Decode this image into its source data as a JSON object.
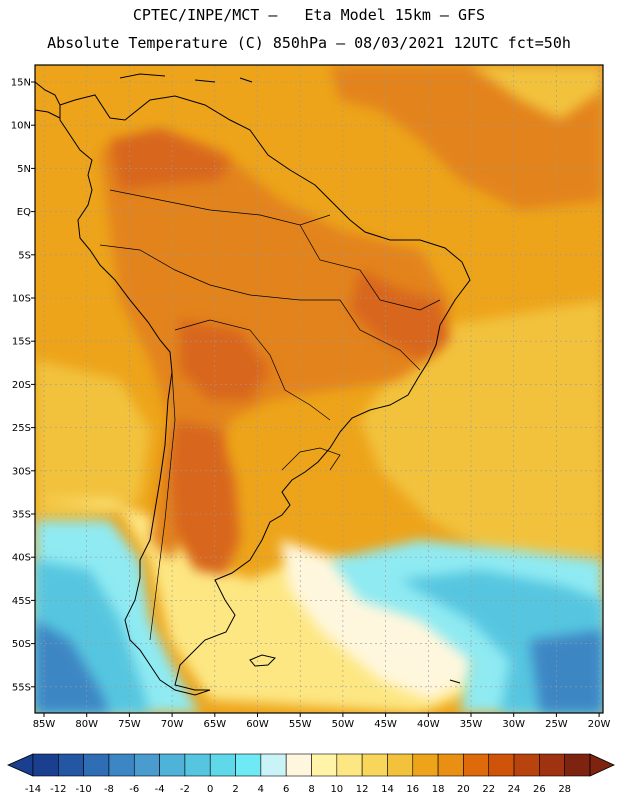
{
  "header": {
    "line1": "CPTEC/INPE/MCT –   Eta Model 15km – GFS",
    "line2": "Absolute Temperature (C) 850hPa – 08/03/2021 12UTC fct=50h"
  },
  "axes": {
    "lat_labels": [
      "15N",
      "10N",
      "5N",
      "EQ",
      "5S",
      "10S",
      "15S",
      "20S",
      "25S",
      "30S",
      "35S",
      "40S",
      "45S",
      "50S",
      "55S"
    ],
    "lon_labels": [
      "85W",
      "80W",
      "75W",
      "70W",
      "65W",
      "60W",
      "55W",
      "50W",
      "45W",
      "40W",
      "35W",
      "30W",
      "25W",
      "20W"
    ]
  },
  "colorbar": {
    "tick_labels": [
      "-14",
      "-12",
      "-10",
      "-8",
      "-6",
      "-4",
      "-2",
      "0",
      "2",
      "4",
      "6",
      "8",
      "10",
      "12",
      "14",
      "16",
      "18",
      "20",
      "22",
      "24",
      "26",
      "28"
    ],
    "colors": [
      "#1a3f8f",
      "#2356a3",
      "#2f6db5",
      "#3d86c4",
      "#4a9ccf",
      "#4fb2d8",
      "#56c6e0",
      "#5fd8e9",
      "#6fe9f3",
      "#c9f3f7",
      "#fff7dd",
      "#fff4a8",
      "#fde783",
      "#f8d55b",
      "#f2c23c",
      "#eda41a",
      "#e98f13",
      "#de6a0c",
      "#cf540a",
      "#b9430d",
      "#9f3210",
      "#7e2310"
    ]
  },
  "field_colors": {
    "very_warm": "#d8661f",
    "warm": "#e3831a",
    "mild": "#eda41a",
    "moderate": "#f2c23c",
    "cool": "#fde783",
    "pale": "#fff7dd",
    "cold_light": "#8feaf2",
    "cold": "#56c6e0",
    "colder": "#3d86c4",
    "coldest": "#2356a3"
  }
}
